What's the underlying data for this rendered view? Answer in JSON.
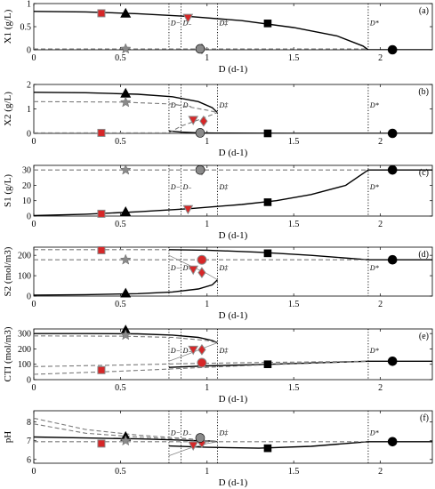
{
  "chart_data": [
    {
      "type": "line",
      "panel_tag": "(a)",
      "ylabel": "X1 (g/L)",
      "xlabel": "D (d-1)",
      "xlim": [
        0,
        2.3
      ],
      "ylim": [
        0,
        1
      ],
      "yticks": [
        "0",
        "0.5",
        "1"
      ],
      "xticks": [
        "0",
        "0.5",
        "1",
        "1.5",
        "2"
      ],
      "vlines": [
        {
          "label": "D−",
          "x": 0.78
        },
        {
          "label": "D₋",
          "x": 0.85
        },
        {
          "label": "D‡",
          "x": 1.06
        },
        {
          "label": "D*",
          "x": 1.93
        }
      ],
      "series": [
        {
          "style": "solid",
          "x": [
            0,
            0.3,
            0.6,
            0.9,
            1.2,
            1.5,
            1.75,
            1.9,
            1.93,
            2.3
          ],
          "y": [
            0.83,
            0.82,
            0.78,
            0.72,
            0.63,
            0.48,
            0.3,
            0.08,
            0,
            0
          ]
        },
        {
          "style": "dashed",
          "x": [
            0,
            1.93
          ],
          "y": [
            0.02,
            0.02
          ]
        }
      ],
      "markers": [
        {
          "shape": "square",
          "color": "red",
          "x": 0.39,
          "y": 0.79
        },
        {
          "shape": "triangle",
          "color": "black",
          "x": 0.53,
          "y": 0.78
        },
        {
          "shape": "star",
          "color": "gray",
          "x": 0.53,
          "y": 0.02
        },
        {
          "shape": "triangle-down",
          "color": "red",
          "x": 0.89,
          "y": 0.69
        },
        {
          "shape": "diamond",
          "color": "red",
          "x": 0.97,
          "y": 0.02
        },
        {
          "shape": "circle",
          "color": "gray",
          "x": 0.96,
          "y": 0.02
        },
        {
          "shape": "square",
          "color": "black",
          "x": 1.35,
          "y": 0.57
        },
        {
          "shape": "circle",
          "color": "black",
          "x": 2.07,
          "y": 0
        }
      ]
    },
    {
      "type": "line",
      "panel_tag": "(b)",
      "ylabel": "X2 (g/L)",
      "xlabel": "D (d-1)",
      "xlim": [
        0,
        2.3
      ],
      "ylim": [
        0,
        2
      ],
      "yticks": [
        "0",
        "1",
        "2"
      ],
      "xticks": [
        "0",
        "0.5",
        "1",
        "1.5",
        "2"
      ],
      "vlines": [
        {
          "label": "D−",
          "x": 0.78
        },
        {
          "label": "D₋",
          "x": 0.85
        },
        {
          "label": "D‡",
          "x": 1.06
        },
        {
          "label": "D*",
          "x": 1.93
        }
      ],
      "series": [
        {
          "style": "solid",
          "x": [
            0,
            0.3,
            0.6,
            0.8,
            0.95,
            1.03,
            1.06
          ],
          "y": [
            1.68,
            1.66,
            1.6,
            1.5,
            1.3,
            1.05,
            0.85
          ]
        },
        {
          "style": "solid",
          "x": [
            0.78,
            0.85,
            0.95,
            1.06,
            1.5,
            2.3
          ],
          "y": [
            0.1,
            0.05,
            0.02,
            0.01,
            0,
            0
          ]
        },
        {
          "style": "dashed",
          "x": [
            0,
            0.5,
            0.8,
            1.0,
            1.06
          ],
          "y": [
            1.3,
            1.28,
            1.2,
            0.95,
            0.85
          ]
        },
        {
          "style": "dashed",
          "x": [
            0,
            0.78,
            0.85,
            0.95,
            1.06
          ],
          "y": [
            0.02,
            0.02,
            0.3,
            0.55,
            0.85
          ]
        }
      ],
      "markers": [
        {
          "shape": "square",
          "color": "red",
          "x": 0.39,
          "y": 0.02
        },
        {
          "shape": "triangle",
          "color": "black",
          "x": 0.53,
          "y": 1.62
        },
        {
          "shape": "star",
          "color": "gray",
          "x": 0.53,
          "y": 1.27
        },
        {
          "shape": "triangle-down",
          "color": "red",
          "x": 0.92,
          "y": 0.55
        },
        {
          "shape": "diamond",
          "color": "red",
          "x": 0.98,
          "y": 0.5
        },
        {
          "shape": "circle",
          "color": "gray",
          "x": 0.96,
          "y": 0.02
        },
        {
          "shape": "square",
          "color": "black",
          "x": 1.35,
          "y": 0
        },
        {
          "shape": "circle",
          "color": "black",
          "x": 2.07,
          "y": 0
        }
      ]
    },
    {
      "type": "line",
      "panel_tag": "(c)",
      "ylabel": "S1 (g/L)",
      "xlabel": "D (d-1)",
      "xlim": [
        0,
        2.3
      ],
      "ylim": [
        0,
        33
      ],
      "yticks": [
        "0",
        "10",
        "20",
        "30"
      ],
      "xticks": [
        "0",
        "0.5",
        "1",
        "1.5",
        "2"
      ],
      "vlines": [
        {
          "label": "D−",
          "x": 0.78
        },
        {
          "label": "D₋",
          "x": 0.85
        },
        {
          "label": "D‡",
          "x": 1.06
        },
        {
          "label": "D*",
          "x": 1.93
        }
      ],
      "series": [
        {
          "style": "solid",
          "x": [
            0,
            0.3,
            0.6,
            0.9,
            1.2,
            1.4,
            1.6,
            1.8,
            1.93,
            2.3
          ],
          "y": [
            0.3,
            1.2,
            2.8,
            4.8,
            7.5,
            10,
            14,
            20,
            30,
            30
          ]
        },
        {
          "style": "dashed",
          "x": [
            0,
            1.93
          ],
          "y": [
            30,
            30
          ]
        }
      ],
      "markers": [
        {
          "shape": "square",
          "color": "red",
          "x": 0.39,
          "y": 1.5
        },
        {
          "shape": "triangle",
          "color": "black",
          "x": 0.53,
          "y": 2.5
        },
        {
          "shape": "star",
          "color": "gray",
          "x": 0.53,
          "y": 30
        },
        {
          "shape": "triangle-down",
          "color": "red",
          "x": 0.89,
          "y": 4.5
        },
        {
          "shape": "diamond",
          "color": "red",
          "x": 0.97,
          "y": 30
        },
        {
          "shape": "circle",
          "color": "gray",
          "x": 0.96,
          "y": 30
        },
        {
          "shape": "square",
          "color": "black",
          "x": 1.35,
          "y": 9
        },
        {
          "shape": "circle",
          "color": "black",
          "x": 2.07,
          "y": 30
        }
      ]
    },
    {
      "type": "line",
      "panel_tag": "(d)",
      "ylabel": "S2 (mol/m3)",
      "xlabel": "D (d-1)",
      "xlim": [
        0,
        2.3
      ],
      "ylim": [
        0,
        240
      ],
      "yticks": [
        "0",
        "100",
        "200"
      ],
      "xticks": [
        "0",
        "0.5",
        "1",
        "1.5",
        "2"
      ],
      "vlines": [
        {
          "label": "D−",
          "x": 0.78
        },
        {
          "label": "D₋",
          "x": 0.85
        },
        {
          "label": "D‡",
          "x": 1.06
        },
        {
          "label": "D*",
          "x": 1.93
        }
      ],
      "series": [
        {
          "style": "solid",
          "x": [
            0,
            0.3,
            0.6,
            0.8,
            0.95,
            1.03,
            1.06
          ],
          "y": [
            5,
            7,
            12,
            20,
            35,
            55,
            80
          ]
        },
        {
          "style": "solid",
          "x": [
            0.78,
            1.0,
            1.3,
            1.6,
            1.93,
            2.3
          ],
          "y": [
            228,
            225,
            215,
            200,
            178,
            178
          ]
        },
        {
          "style": "dashed",
          "x": [
            0,
            1.93
          ],
          "y": [
            178,
            178
          ]
        },
        {
          "style": "dashed",
          "x": [
            0,
            0.78
          ],
          "y": [
            228,
            228
          ]
        },
        {
          "style": "thin",
          "x": [
            0.78,
            0.9,
            1.0,
            1.06
          ],
          "y": [
            200,
            150,
            110,
            80
          ]
        }
      ],
      "markers": [
        {
          "shape": "square",
          "color": "red",
          "x": 0.39,
          "y": 225
        },
        {
          "shape": "triangle",
          "color": "black",
          "x": 0.53,
          "y": 12
        },
        {
          "shape": "star",
          "color": "gray",
          "x": 0.53,
          "y": 178
        },
        {
          "shape": "triangle-down",
          "color": "red",
          "x": 0.92,
          "y": 130
        },
        {
          "shape": "diamond",
          "color": "red",
          "x": 0.97,
          "y": 115
        },
        {
          "shape": "circle",
          "color": "red",
          "x": 0.97,
          "y": 178
        },
        {
          "shape": "square",
          "color": "black",
          "x": 1.35,
          "y": 210
        },
        {
          "shape": "circle",
          "color": "black",
          "x": 2.07,
          "y": 178
        }
      ]
    },
    {
      "type": "line",
      "panel_tag": "(e)",
      "ylabel": "CTI (mol/m3)",
      "xlabel": "D (d-1)",
      "xlim": [
        0,
        2.3
      ],
      "ylim": [
        0,
        330
      ],
      "yticks": [
        "0",
        "100",
        "200",
        "300"
      ],
      "xticks": [
        "0",
        "0.5",
        "1",
        "1.5",
        "2"
      ],
      "vlines": [
        {
          "label": "D−",
          "x": 0.78
        },
        {
          "label": "D₋",
          "x": 0.85
        },
        {
          "label": "D‡",
          "x": 1.06
        },
        {
          "label": "D*",
          "x": 1.93
        }
      ],
      "series": [
        {
          "style": "solid",
          "x": [
            0,
            0.3,
            0.6,
            0.8,
            0.95,
            1.03,
            1.06
          ],
          "y": [
            300,
            300,
            298,
            290,
            275,
            255,
            240
          ]
        },
        {
          "style": "solid",
          "x": [
            0.78,
            1.0,
            1.3,
            1.6,
            1.93,
            2.3
          ],
          "y": [
            80,
            90,
            98,
            108,
            120,
            120
          ]
        },
        {
          "style": "dashed",
          "x": [
            0,
            0.5,
            0.8,
            1.0,
            1.06
          ],
          "y": [
            285,
            283,
            275,
            255,
            240
          ]
        },
        {
          "style": "dashed",
          "x": [
            0,
            0.5,
            0.9,
            1.3,
            1.93
          ],
          "y": [
            35,
            55,
            75,
            95,
            120
          ]
        },
        {
          "style": "dashed",
          "x": [
            0,
            0.5,
            0.9,
            1.3,
            1.93
          ],
          "y": [
            85,
            95,
            105,
            112,
            120
          ]
        },
        {
          "style": "thin",
          "x": [
            0.78,
            0.9,
            1.0,
            1.06
          ],
          "y": [
            120,
            170,
            215,
            240
          ]
        }
      ],
      "markers": [
        {
          "shape": "square",
          "color": "red",
          "x": 0.39,
          "y": 62
        },
        {
          "shape": "triangle",
          "color": "black",
          "x": 0.53,
          "y": 320
        },
        {
          "shape": "star",
          "color": "gray",
          "x": 0.53,
          "y": 290
        },
        {
          "shape": "triangle-down",
          "color": "red",
          "x": 0.92,
          "y": 195
        },
        {
          "shape": "diamond",
          "color": "red",
          "x": 0.97,
          "y": 195
        },
        {
          "shape": "circle",
          "color": "red",
          "x": 0.97,
          "y": 110
        },
        {
          "shape": "square",
          "color": "black",
          "x": 1.35,
          "y": 100
        },
        {
          "shape": "circle",
          "color": "black",
          "x": 2.07,
          "y": 120
        }
      ]
    },
    {
      "type": "line",
      "panel_tag": "(f)",
      "ylabel": "pH",
      "xlabel": "D (d-1)",
      "xlim": [
        0,
        2.3
      ],
      "ylim": [
        5.8,
        8.6
      ],
      "yticks": [
        "6",
        "7",
        "8"
      ],
      "xticks": [
        "0",
        "0.5",
        "1",
        "1.5",
        "2"
      ],
      "vlines": [
        {
          "label": "D−",
          "x": 0.78
        },
        {
          "label": "D₋",
          "x": 0.85
        },
        {
          "label": "D‡",
          "x": 1.06
        },
        {
          "label": "D*",
          "x": 1.93
        }
      ],
      "series": [
        {
          "style": "solid",
          "x": [
            0,
            0.3,
            0.6,
            0.8,
            0.95,
            1.03,
            1.06
          ],
          "y": [
            7.2,
            7.15,
            7.1,
            7.05,
            7.0,
            6.98,
            6.95
          ]
        },
        {
          "style": "solid",
          "x": [
            0.78,
            1.0,
            1.3,
            1.6,
            1.93,
            2.3
          ],
          "y": [
            6.72,
            6.65,
            6.6,
            6.7,
            6.95,
            6.95
          ]
        },
        {
          "style": "dashed",
          "x": [
            0,
            1.93
          ],
          "y": [
            6.95,
            6.95
          ]
        },
        {
          "style": "dashed",
          "x": [
            0,
            0.3,
            0.6,
            0.9,
            1.06
          ],
          "y": [
            8.2,
            7.6,
            7.3,
            7.1,
            6.95
          ]
        },
        {
          "style": "dashed",
          "x": [
            0,
            0.3,
            0.6,
            0.9,
            1.06
          ],
          "y": [
            7.9,
            7.4,
            7.2,
            7.05,
            6.95
          ]
        },
        {
          "style": "thin",
          "x": [
            0.78,
            0.9,
            1.0,
            1.06
          ],
          "y": [
            6.2,
            6.6,
            6.85,
            6.95
          ]
        }
      ],
      "markers": [
        {
          "shape": "square",
          "color": "red",
          "x": 0.39,
          "y": 6.85
        },
        {
          "shape": "triangle",
          "color": "black",
          "x": 0.53,
          "y": 7.2
        },
        {
          "shape": "star",
          "color": "gray",
          "x": 0.53,
          "y": 7.0
        },
        {
          "shape": "triangle-down",
          "color": "red",
          "x": 0.92,
          "y": 6.75
        },
        {
          "shape": "diamond",
          "color": "red",
          "x": 0.97,
          "y": 6.9
        },
        {
          "shape": "circle",
          "color": "gray",
          "x": 0.96,
          "y": 7.15
        },
        {
          "shape": "square",
          "color": "black",
          "x": 1.35,
          "y": 6.6
        },
        {
          "shape": "circle",
          "color": "black",
          "x": 2.07,
          "y": 6.95
        }
      ]
    }
  ]
}
